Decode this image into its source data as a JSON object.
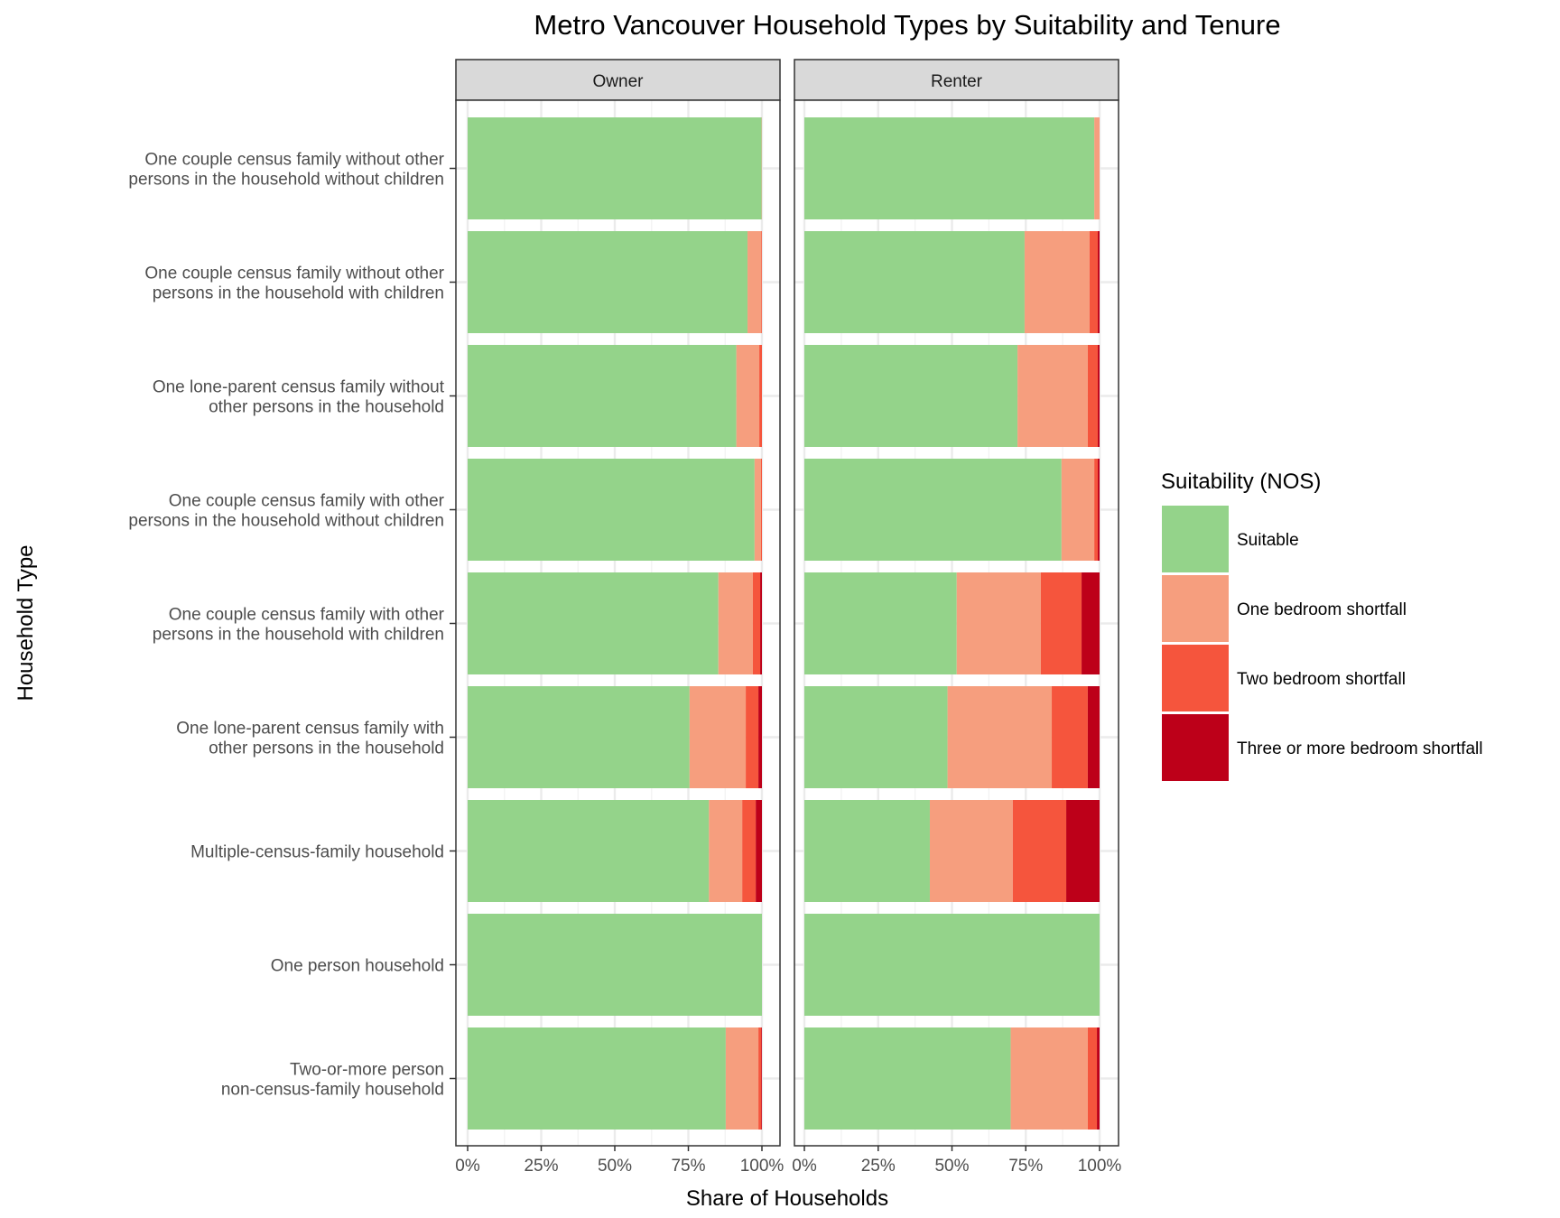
{
  "chart_data": {
    "type": "bar",
    "orientation": "horizontal",
    "stacked": "fill",
    "title": "Metro Vancouver Household Types by Suitability and Tenure",
    "xlabel": "Share of Households",
    "ylabel": "Household Type",
    "xlim": [
      0,
      100
    ],
    "x_ticks": [
      "0%",
      "25%",
      "50%",
      "75%",
      "100%"
    ],
    "grid": true,
    "legend": {
      "title": "Suitability (NOS)",
      "placement": "right",
      "entries": [
        "Suitable",
        "One bedroom shortfall",
        "Two bedroom shortfall",
        "Three or more bedroom shortfall"
      ]
    },
    "colors": [
      "#94D38A",
      "#F69E7E",
      "#F5553D",
      "#BD0019"
    ],
    "categories": [
      [
        "One couple census family without other",
        "persons in the household without children"
      ],
      [
        "One couple census family without other",
        "persons in the household with children"
      ],
      [
        "One lone-parent census family without",
        "other persons in the household"
      ],
      [
        "One couple census family with other",
        "persons in the household without children"
      ],
      [
        "One couple census family with other",
        "persons in the household with children"
      ],
      [
        "One lone-parent census family with",
        "other persons in the household"
      ],
      [
        "Multiple-census-family household"
      ],
      [
        "One person household"
      ],
      [
        "Two-or-more person",
        "non-census-family household"
      ]
    ],
    "facets": [
      {
        "name": "Owner",
        "values": [
          [
            99.9,
            0.1,
            0.0,
            0.0
          ],
          [
            95.1,
            4.7,
            0.2,
            0.0
          ],
          [
            91.3,
            7.8,
            0.9,
            0.0
          ],
          [
            97.5,
            2.2,
            0.3,
            0.0
          ],
          [
            85.2,
            11.7,
            2.5,
            0.6
          ],
          [
            75.4,
            19.1,
            4.3,
            1.2
          ],
          [
            82.0,
            11.3,
            4.6,
            2.1
          ],
          [
            100.0,
            0.0,
            0.0,
            0.0
          ],
          [
            87.7,
            11.1,
            1.0,
            0.2
          ]
        ]
      },
      {
        "name": "Renter",
        "values": [
          [
            98.2,
            1.8,
            0.0,
            0.0
          ],
          [
            74.6,
            22.0,
            2.8,
            0.6
          ],
          [
            72.2,
            23.8,
            3.4,
            0.6
          ],
          [
            87.1,
            11.1,
            1.2,
            0.6
          ],
          [
            51.6,
            28.5,
            13.8,
            6.1
          ],
          [
            48.5,
            35.3,
            12.2,
            4.0
          ],
          [
            42.5,
            28.1,
            18.1,
            11.3
          ],
          [
            100.0,
            0.0,
            0.0,
            0.0
          ],
          [
            69.9,
            26.1,
            3.1,
            0.9
          ]
        ]
      }
    ]
  }
}
